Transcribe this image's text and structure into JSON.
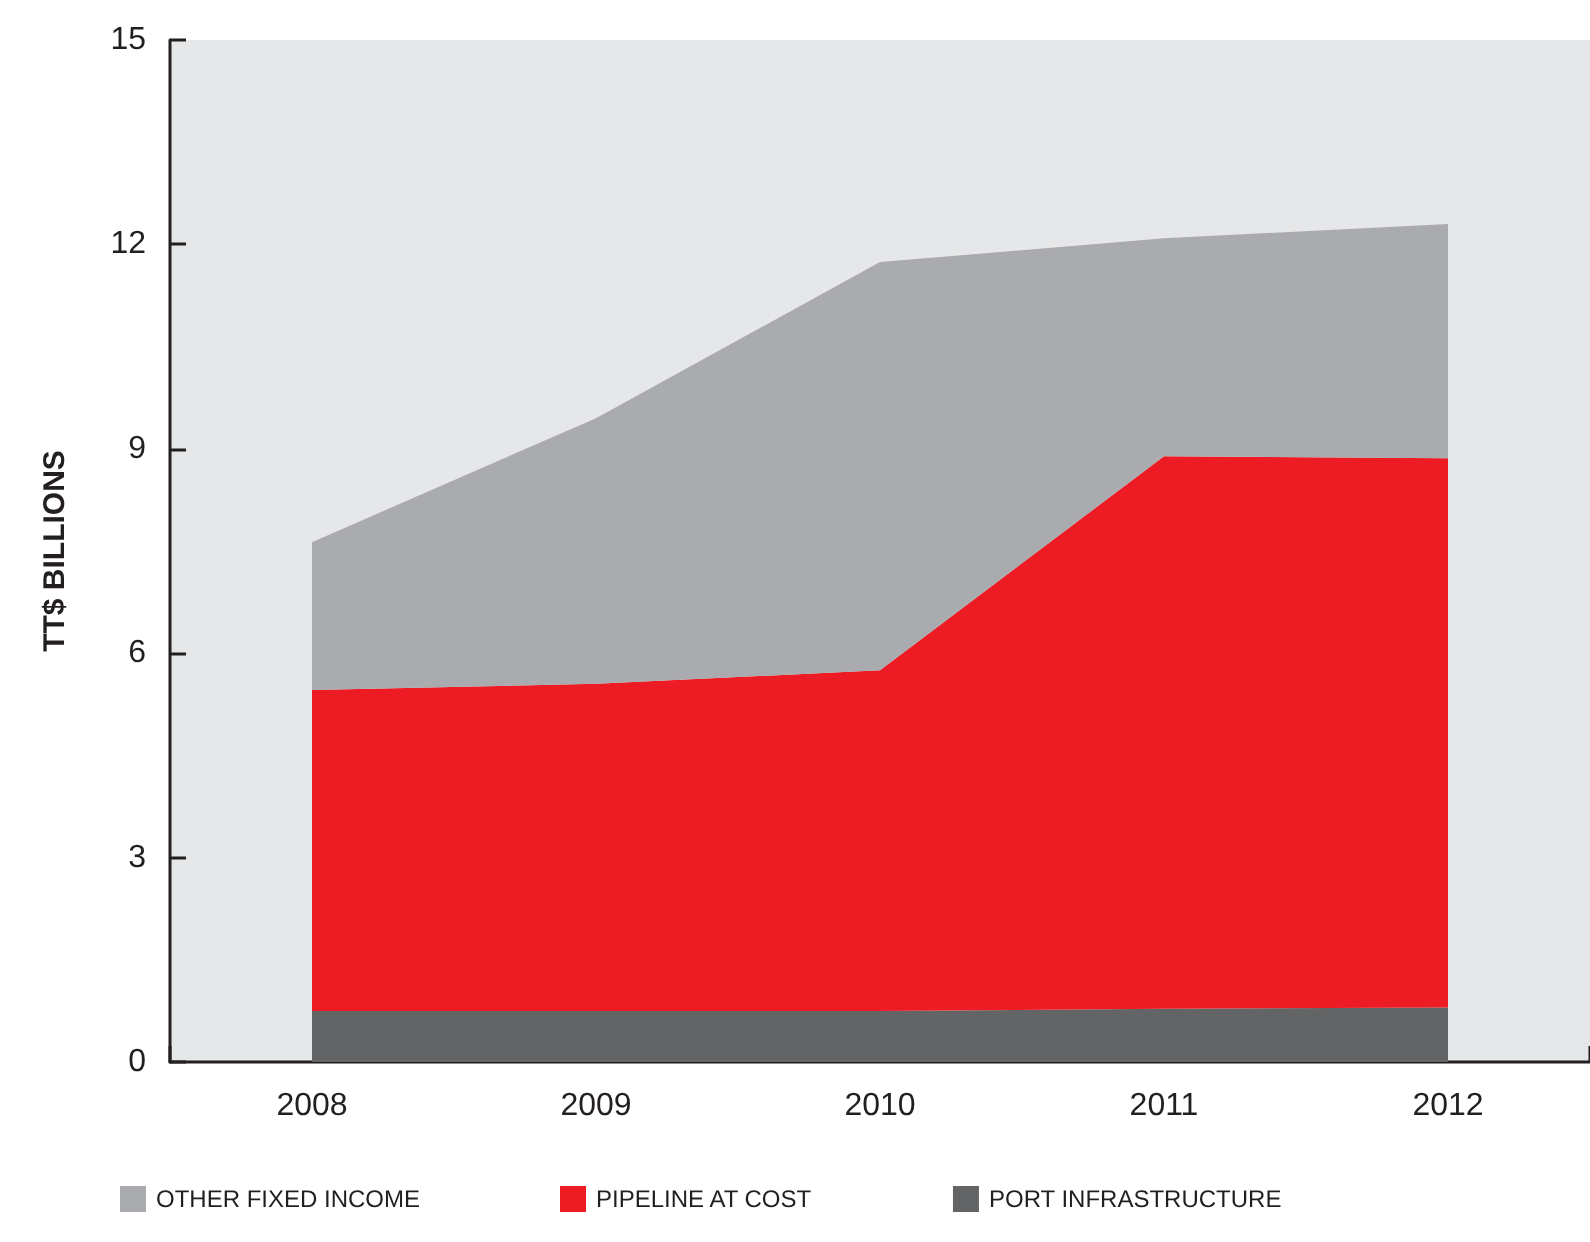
{
  "chart_data": {
    "type": "area",
    "stacked": true,
    "ylabel": "TT$ BILLIONS",
    "categories": [
      "2008",
      "2009",
      "2010",
      "2011",
      "2012"
    ],
    "series": [
      {
        "name": "PORT INFRASTRUCTURE",
        "color": "#636466",
        "values": [
          0.75,
          0.75,
          0.75,
          0.78,
          0.8
        ]
      },
      {
        "name": "PIPELINE AT COST",
        "color": "#ed1c24",
        "values": [
          4.71,
          4.8,
          5.0,
          8.11,
          8.06
        ]
      },
      {
        "name": "OTHER FIXED INCOME",
        "color": "#aaabae",
        "values": [
          2.17,
          3.9,
          5.99,
          3.2,
          3.44
        ]
      }
    ],
    "ylim": [
      0,
      15
    ],
    "yticks": [
      0,
      3,
      6,
      9,
      12,
      15
    ],
    "grid": false,
    "legend": "bottom left",
    "marker": "none"
  }
}
